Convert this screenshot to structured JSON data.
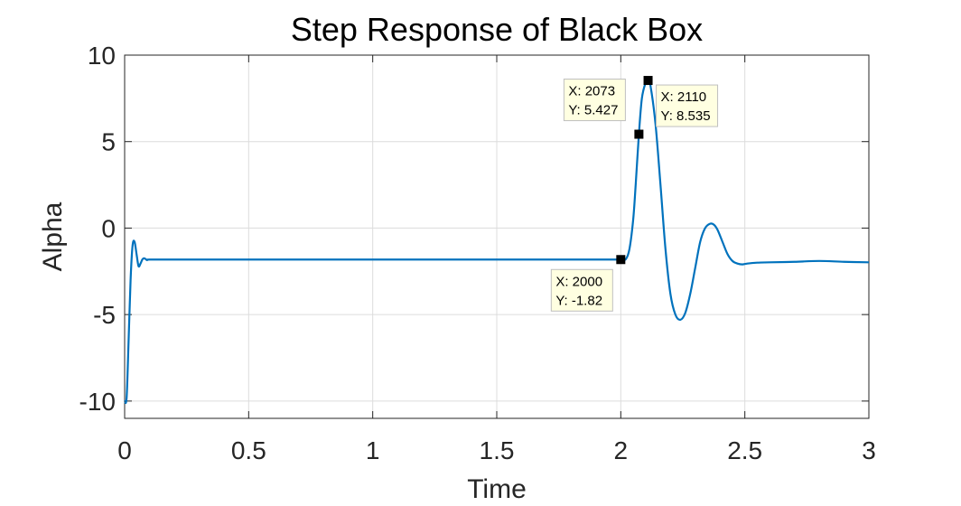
{
  "chart_data": {
    "type": "line",
    "title": "Step Response of Black Box",
    "xlabel": "Time",
    "ylabel": "Alpha",
    "xlim": [
      0,
      3
    ],
    "ylim": [
      -11,
      10
    ],
    "xticks": [
      0,
      0.5,
      1,
      1.5,
      2,
      2.5,
      3
    ],
    "xtick_labels": [
      "0",
      "0.5",
      "1",
      "1.5",
      "2",
      "2.5",
      "3"
    ],
    "yticks": [
      -10,
      -5,
      0,
      5,
      10
    ],
    "ytick_labels": [
      "-10",
      "-5",
      "0",
      "5",
      "10"
    ],
    "grid": true,
    "line_color": "#0072BD",
    "series": [
      {
        "x": [
          0,
          0.008,
          0.016,
          0.024,
          0.032,
          0.04,
          0.048,
          0.056,
          0.064,
          0.072,
          0.08,
          0.09,
          0.1,
          0.2,
          0.5,
          1.0,
          1.5,
          1.9,
          1.98,
          2.0,
          2.02,
          2.035,
          2.05,
          2.06,
          2.073,
          2.085,
          2.1,
          2.11,
          2.12,
          2.14,
          2.16,
          2.18,
          2.2,
          2.22,
          2.24,
          2.26,
          2.28,
          2.3,
          2.32,
          2.34,
          2.36,
          2.375,
          2.39,
          2.41,
          2.43,
          2.45,
          2.47,
          2.49,
          2.51,
          2.55,
          2.6,
          2.7,
          2.8,
          2.9,
          3.0
        ],
        "y": [
          -10,
          -9.8,
          -6.5,
          -3.0,
          -1.0,
          -0.8,
          -1.5,
          -2.2,
          -2.05,
          -1.8,
          -1.75,
          -1.85,
          -1.82,
          -1.82,
          -1.82,
          -1.82,
          -1.82,
          -1.82,
          -1.82,
          -1.82,
          -1.8,
          -1.2,
          0.5,
          2.5,
          5.427,
          7.5,
          8.4,
          8.535,
          8.2,
          6.0,
          2.5,
          -1.2,
          -3.8,
          -5.0,
          -5.3,
          -4.9,
          -3.8,
          -2.3,
          -0.8,
          0.0,
          0.25,
          0.2,
          -0.1,
          -0.8,
          -1.5,
          -1.9,
          -2.05,
          -2.1,
          -2.05,
          -2.0,
          -1.98,
          -1.95,
          -1.9,
          -1.95,
          -1.98
        ]
      }
    ],
    "datatips": [
      {
        "x": 2000,
        "y": -1.82,
        "xv": 2.0,
        "x_text": "X: 2000",
        "y_text": "Y: -1.82",
        "placement": "bottom-left"
      },
      {
        "x": 2073,
        "y": 5.427,
        "xv": 2.073,
        "x_text": "X: 2073",
        "y_text": "Y: 5.427",
        "placement": "top-left"
      },
      {
        "x": 2110,
        "y": 8.535,
        "xv": 2.11,
        "x_text": "X: 2110",
        "y_text": "Y: 8.535",
        "placement": "right"
      }
    ]
  }
}
